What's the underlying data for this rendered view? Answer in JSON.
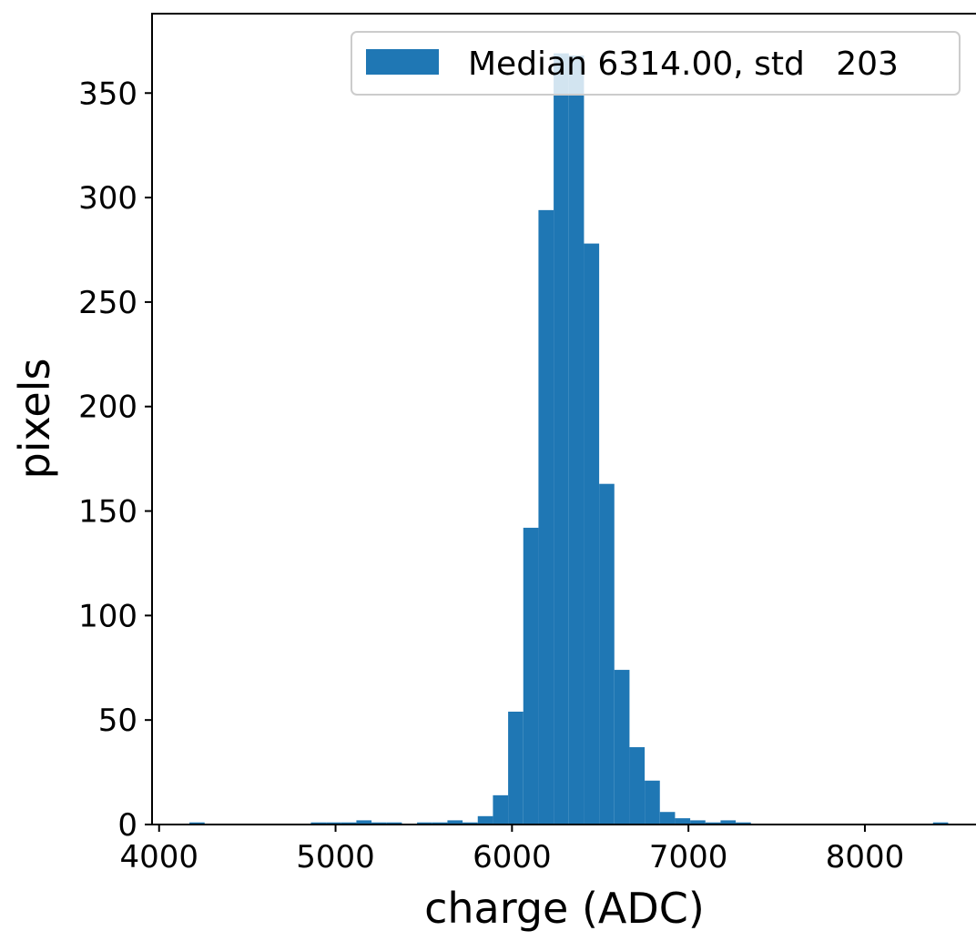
{
  "chart_data": {
    "type": "bar",
    "title": "",
    "xlabel": "charge (ADC)",
    "ylabel": "pixels",
    "xlim": [
      3960,
      8640
    ],
    "ylim": [
      0,
      388
    ],
    "xticks": [
      4000,
      5000,
      6000,
      7000,
      8000
    ],
    "yticks": [
      0,
      50,
      100,
      150,
      200,
      250,
      300,
      350
    ],
    "bin_width": 86,
    "grid": false,
    "legend": "top-right",
    "color": "#1f77b4",
    "series": [
      {
        "name": "Median 6314.00, std   203",
        "bins": [
          {
            "x0": 4172,
            "x1": 4258,
            "y": 1
          },
          {
            "x0": 4860,
            "x1": 4946,
            "y": 1
          },
          {
            "x0": 4946,
            "x1": 5032,
            "y": 1
          },
          {
            "x0": 5032,
            "x1": 5118,
            "y": 1
          },
          {
            "x0": 5118,
            "x1": 5204,
            "y": 2
          },
          {
            "x0": 5204,
            "x1": 5290,
            "y": 1
          },
          {
            "x0": 5290,
            "x1": 5376,
            "y": 1
          },
          {
            "x0": 5462,
            "x1": 5548,
            "y": 1
          },
          {
            "x0": 5548,
            "x1": 5634,
            "y": 1
          },
          {
            "x0": 5634,
            "x1": 5720,
            "y": 2
          },
          {
            "x0": 5720,
            "x1": 5806,
            "y": 1
          },
          {
            "x0": 5806,
            "x1": 5892,
            "y": 4
          },
          {
            "x0": 5892,
            "x1": 5978,
            "y": 14
          },
          {
            "x0": 5978,
            "x1": 6064,
            "y": 54
          },
          {
            "x0": 6064,
            "x1": 6150,
            "y": 142
          },
          {
            "x0": 6150,
            "x1": 6236,
            "y": 294
          },
          {
            "x0": 6236,
            "x1": 6322,
            "y": 369
          },
          {
            "x0": 6322,
            "x1": 6408,
            "y": 368
          },
          {
            "x0": 6408,
            "x1": 6494,
            "y": 278
          },
          {
            "x0": 6494,
            "x1": 6580,
            "y": 163
          },
          {
            "x0": 6580,
            "x1": 6666,
            "y": 74
          },
          {
            "x0": 6666,
            "x1": 6752,
            "y": 37
          },
          {
            "x0": 6752,
            "x1": 6838,
            "y": 21
          },
          {
            "x0": 6838,
            "x1": 6924,
            "y": 6
          },
          {
            "x0": 6924,
            "x1": 7010,
            "y": 3
          },
          {
            "x0": 7010,
            "x1": 7096,
            "y": 2
          },
          {
            "x0": 7096,
            "x1": 7182,
            "y": 1
          },
          {
            "x0": 7182,
            "x1": 7268,
            "y": 2
          },
          {
            "x0": 7268,
            "x1": 7354,
            "y": 1
          },
          {
            "x0": 8386,
            "x1": 8472,
            "y": 1
          }
        ]
      }
    ]
  }
}
